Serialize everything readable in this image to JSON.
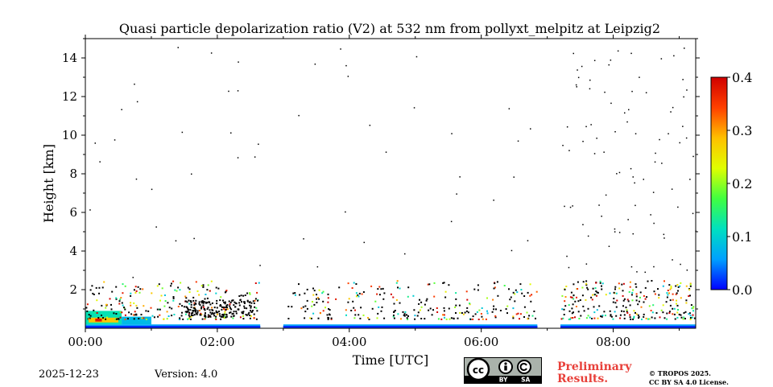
{
  "chart_data": {
    "type": "heatmap",
    "title": "Quasi particle depolarization ratio (V2) at 532 nm from pollyxt_melpitz at Leipzig2",
    "xlabel": "Time [UTC]",
    "ylabel": "Height [km]",
    "xlim_hours": [
      0,
      9.25
    ],
    "ylim_km": [
      0,
      15
    ],
    "x_ticks": [
      {
        "value": 0,
        "label": "00:00"
      },
      {
        "value": 2,
        "label": "02:00"
      },
      {
        "value": 4,
        "label": "04:00"
      },
      {
        "value": 6,
        "label": "06:00"
      },
      {
        "value": 8,
        "label": "08:00"
      }
    ],
    "y_ticks": [
      {
        "value": 2,
        "label": "2"
      },
      {
        "value": 4,
        "label": "4"
      },
      {
        "value": 6,
        "label": "6"
      },
      {
        "value": 8,
        "label": "8"
      },
      {
        "value": 10,
        "label": "10"
      },
      {
        "value": 12,
        "label": "12"
      },
      {
        "value": 14,
        "label": "14"
      }
    ],
    "colorbar": {
      "range": [
        0,
        0.4
      ],
      "ticks": [
        {
          "value": 0.0,
          "label": "0.0"
        },
        {
          "value": 0.1,
          "label": "0.1"
        },
        {
          "value": 0.2,
          "label": "0.2"
        },
        {
          "value": 0.3,
          "label": "0.3"
        },
        {
          "value": 0.4,
          "label": "0.4"
        }
      ],
      "colormap": [
        "#0000ff",
        "#00a0ff",
        "#00e0c0",
        "#40ff40",
        "#e0ff00",
        "#ffc000",
        "#ff4000",
        "#d00000"
      ]
    },
    "data_segments_hours": [
      [
        0,
        2.65
      ],
      [
        3.0,
        6.85
      ],
      [
        7.2,
        9.25
      ]
    ],
    "near_surface_layer": {
      "top_km_typical": 0.2,
      "early_aerosol_top_km": 0.9,
      "dominant_value": 0.06
    },
    "scattered_high_values_km": [
      0.5,
      2.5
    ]
  },
  "footer": {
    "date": "2025-12-23",
    "version": "Version: 4.0",
    "cc_license": "BY SA",
    "preliminary_line1": "Preliminary",
    "preliminary_line2": "Results.",
    "copyright_line1": "© TROPOS 2025.",
    "copyright_line2": "CC BY SA 4.0 License."
  },
  "colors": {
    "preliminary": "#e8403a",
    "badge_bg": "#aab2ab"
  }
}
